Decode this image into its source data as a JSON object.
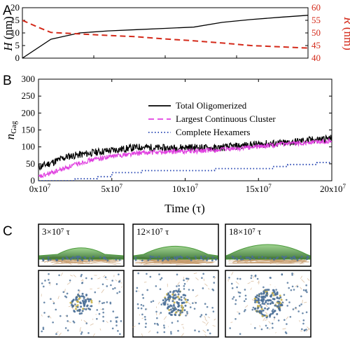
{
  "panel_letters": {
    "a": "A",
    "b": "B",
    "c": "C"
  },
  "chart_data": [
    {
      "panel": "A",
      "type": "line",
      "ylabel_left": "H (nm)",
      "ylabel_right": "R (nm)",
      "xlim": [
        0,
        20
      ],
      "ylim_left": [
        0,
        20
      ],
      "ylim_right": [
        40,
        60
      ],
      "y_ticks_left": [
        "0",
        "5",
        "10",
        "15",
        "20"
      ],
      "y_ticks_right": [
        "40",
        "45",
        "50",
        "55",
        "60"
      ],
      "series": [
        {
          "axis": "left",
          "color": "#000000",
          "style": "solid",
          "x": [
            0,
            2,
            4,
            6,
            8,
            10,
            12,
            14,
            16,
            18,
            20
          ],
          "y": [
            0,
            7.5,
            10,
            10.8,
            11.3,
            11.8,
            12.3,
            14.2,
            15.3,
            16.2,
            17
          ]
        },
        {
          "axis": "right",
          "color": "#d42a1a",
          "style": "dashed",
          "x": [
            0,
            1,
            2,
            4,
            6,
            8,
            10,
            12,
            14,
            16,
            18,
            20
          ],
          "y": [
            55,
            52.5,
            50.2,
            49.6,
            49,
            48.5,
            47.6,
            46.9,
            46,
            45,
            44.5,
            44
          ]
        }
      ]
    },
    {
      "panel": "B",
      "type": "line",
      "xlabel": "Time (τ)",
      "ylabel": "nGag",
      "xlim": [
        0,
        20
      ],
      "ylim": [
        0,
        300
      ],
      "x_ticks": [
        "0x10",
        "5x10",
        "10x10",
        "15x10",
        "20x10"
      ],
      "x_tick_exponent": "7",
      "y_ticks": [
        "0",
        "50",
        "100",
        "150",
        "200",
        "250",
        "300"
      ],
      "legend_position": "top-right",
      "series": [
        {
          "name": "Total Oligomerized",
          "color": "#000000",
          "style": "solid",
          "x": [
            0,
            1,
            2,
            3,
            4,
            5,
            6,
            7,
            8,
            9,
            10,
            11,
            12,
            13,
            14,
            15,
            16,
            17,
            18,
            19,
            20
          ],
          "y": [
            40,
            55,
            72,
            78,
            85,
            90,
            95,
            100,
            97,
            96,
            99,
            98,
            96,
            100,
            104,
            108,
            110,
            112,
            118,
            122,
            125
          ]
        },
        {
          "name": "Largest Continuous Cluster",
          "color": "#e040e0",
          "style": "dashed",
          "x": [
            0,
            1,
            2,
            3,
            4,
            5,
            6,
            7,
            8,
            9,
            10,
            11,
            12,
            13,
            14,
            15,
            16,
            17,
            18,
            19,
            20
          ],
          "y": [
            10,
            25,
            40,
            55,
            65,
            72,
            78,
            82,
            84,
            85,
            87,
            88,
            90,
            93,
            97,
            101,
            105,
            108,
            112,
            115,
            118
          ]
        },
        {
          "name": "Complete Hexamers",
          "color": "#1f3fb0",
          "style": "dotted",
          "x": [
            0,
            1,
            2,
            2.5,
            3,
            4,
            5,
            6,
            7,
            8,
            9,
            10,
            11,
            12,
            13,
            14,
            15,
            16,
            17,
            18,
            19,
            20
          ],
          "y": [
            0,
            0,
            0,
            6,
            6,
            12,
            24,
            24,
            30,
            30,
            30,
            30,
            30,
            36,
            36,
            36,
            36,
            42,
            48,
            48,
            54,
            54
          ]
        }
      ]
    }
  ],
  "snapshots": [
    {
      "label": "3×10⁷ τ",
      "spread": 0.55,
      "bulge": 0.15
    },
    {
      "label": "12×10⁷ τ",
      "spread": 0.75,
      "bulge": 0.45
    },
    {
      "label": "18×10⁷ τ",
      "spread": 0.9,
      "bulge": 0.75
    }
  ],
  "colors": {
    "membrane_green": "#4c9a3c",
    "protein_blue": "#4a6f97",
    "lipid_tan": "#c69a6a",
    "red_axis": "#d42a1a"
  }
}
